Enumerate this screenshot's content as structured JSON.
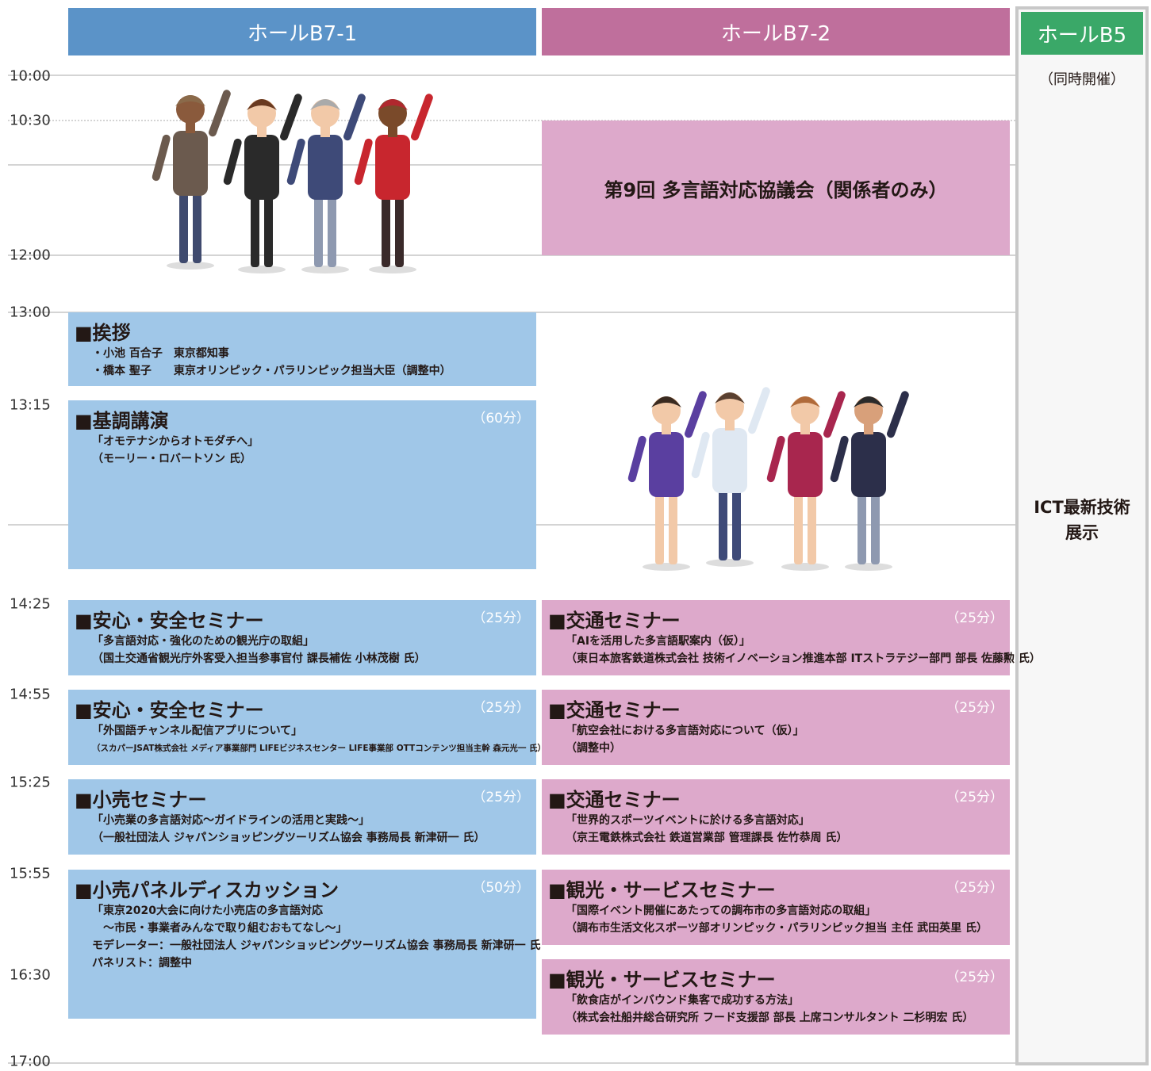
{
  "columns": [
    {
      "title": "ホールB7-1",
      "sessions": [
        {
          "title": "■挨拶",
          "lines": [
            "・小池 百合子　東京都知事",
            "・橋本 聖子　　東京オリンピック・パラリンピック担当大臣（調整中）"
          ]
        },
        {
          "title": "■基調講演",
          "duration": "（60分）",
          "lines": [
            "「オモテナシからオトモダチへ」",
            "（モーリー・ロバートソン 氏）"
          ]
        },
        {
          "title": "■安心・安全セミナー",
          "duration": "（25分）",
          "lines": [
            "「多言語対応・強化のための観光庁の取組」",
            "（国土交通省観光庁外客受入担当参事官付 課長補佐 小林茂樹 氏）"
          ]
        },
        {
          "title": "■安心・安全セミナー",
          "duration": "（25分）",
          "lines": [
            "「外国語チャンネル配信アプリについて」",
            "（スカパーJSAT株式会社 メディア事業部門 LIFEビジネスセンター LIFE事業部 OTTコンテンツ担当主幹 森元光一 氏）"
          ]
        },
        {
          "title": "■小売セミナー",
          "duration": "（25分）",
          "lines": [
            "「小売業の多言語対応～ガイドラインの活用と実践～」",
            "（一般社団法人 ジャパンショッピングツーリズム協会 事務局長 新津研一 氏）"
          ]
        },
        {
          "title": "■小売パネルディスカッション",
          "duration": "（50分）",
          "lines": [
            "「東京2020大会に向けた小売店の多言語対応",
            "　～市民・事業者みんなで取り組むおもてなし～」",
            "モデレーター：一般社団法人 ジャパンショッピングツーリズム協会 事務局長 新津研一 氏",
            "パネリスト：調整中"
          ]
        }
      ]
    },
    {
      "title": "ホールB7-2",
      "sessions": [
        {
          "title": "第9回 多言語対応協議会（関係者のみ）"
        },
        {
          "title": "■交通セミナー",
          "duration": "（25分）",
          "lines": [
            "「AIを活用した多言語駅案内（仮）」",
            "（東日本旅客鉄道株式会社 技術イノベーション推進本部 ITストラテジー部門 部長 佐藤勲 氏）"
          ]
        },
        {
          "title": "■交通セミナー",
          "duration": "（25分）",
          "lines": [
            "「航空会社における多言語対応について（仮）」",
            "（調整中）"
          ]
        },
        {
          "title": "■交通セミナー",
          "duration": "（25分）",
          "lines": [
            "「世界的スポーツイベントに於ける多言語対応」",
            "（京王電鉄株式会社 鉄道営業部 管理課長 佐竹恭周 氏）"
          ]
        },
        {
          "title": "■観光・サービスセミナー",
          "duration": "（25分）",
          "lines": [
            "「国際イベント開催にあたっての調布市の多言語対応の取組」",
            "（調布市生活文化スポーツ部オリンピック・パラリンピック担当 主任 武田英里 氏）"
          ]
        },
        {
          "title": "■観光・サービスセミナー",
          "duration": "（25分）",
          "lines": [
            "「飲食店がインバウンド集客で成功する方法」",
            "（株式会社船井総合研究所 フード支援部 部長 上席コンサルタント 二杉明宏 氏）"
          ]
        }
      ]
    },
    {
      "title": "ホールB5",
      "note": "（同時開催）",
      "lines": [
        "ICT最新技術",
        "展示"
      ]
    }
  ],
  "times": [
    "10:00",
    "10:30",
    "12:00",
    "13:00",
    "13:15",
    "14:25",
    "14:55",
    "15:25",
    "15:55",
    "16:30",
    "17:00"
  ]
}
